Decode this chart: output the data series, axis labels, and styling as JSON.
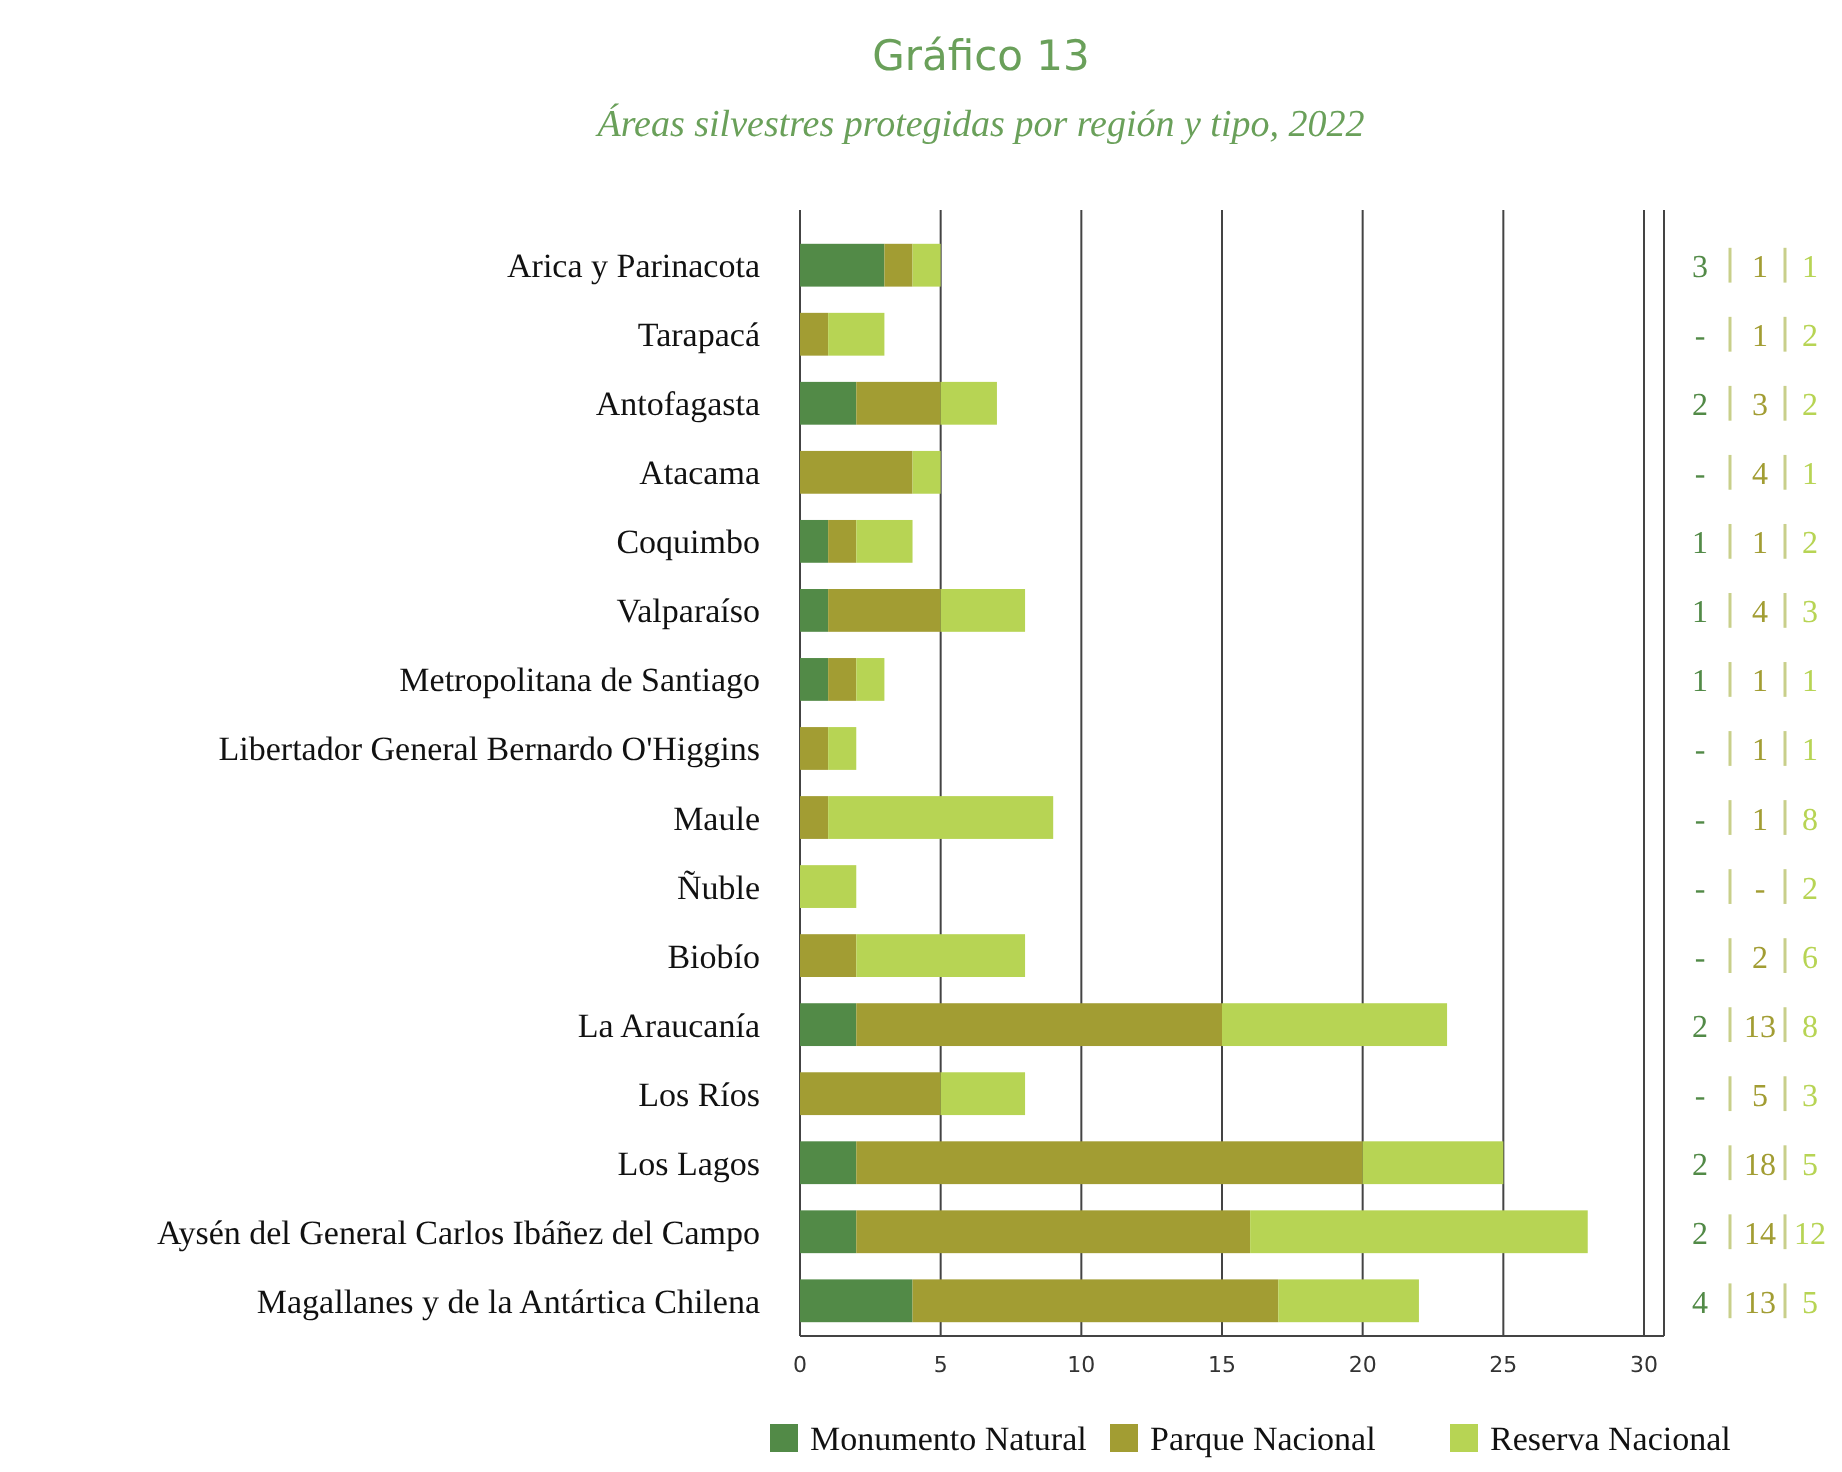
{
  "chart_data": {
    "type": "bar",
    "orientation": "horizontal",
    "stacked": true,
    "title": "Gráfico 13",
    "subtitle": "Áreas silvestres protegidas por región y tipo, 2022",
    "categories": [
      "Arica y Parinacota",
      "Tarapacá",
      "Antofagasta",
      "Atacama",
      "Coquimbo",
      "Valparaíso",
      "Metropolitana de Santiago",
      "Libertador General Bernardo O'Higgins",
      "Maule",
      "Ñuble",
      "Biobío",
      "La Araucanía",
      "Los Ríos",
      "Los Lagos",
      "Aysén del General Carlos Ibáñez del Campo",
      "Magallanes y de la Antártica Chilena"
    ],
    "series": [
      {
        "name": "Monumento Natural",
        "color": "#528a47",
        "values": [
          3,
          0,
          2,
          0,
          1,
          1,
          1,
          0,
          0,
          0,
          0,
          2,
          0,
          2,
          2,
          4
        ],
        "value_labels": [
          "3",
          "-",
          "2",
          "-",
          "1",
          "1",
          "1",
          "-",
          "-",
          "-",
          "-",
          "2",
          "-",
          "2",
          "2",
          "4"
        ]
      },
      {
        "name": "Parque Nacional",
        "color": "#a29d33",
        "values": [
          1,
          1,
          3,
          4,
          1,
          4,
          1,
          1,
          1,
          0,
          2,
          13,
          5,
          18,
          14,
          13
        ],
        "value_labels": [
          "1",
          "1",
          "3",
          "4",
          "1",
          "4",
          "1",
          "1",
          "1",
          "-",
          "2",
          "13",
          "5",
          "18",
          "14",
          "13"
        ]
      },
      {
        "name": "Reserva Nacional",
        "color": "#b7d454",
        "values": [
          1,
          2,
          2,
          1,
          2,
          3,
          1,
          1,
          8,
          2,
          6,
          8,
          3,
          5,
          12,
          5
        ],
        "value_labels": [
          "1",
          "2",
          "2",
          "1",
          "2",
          "3",
          "1",
          "1",
          "8",
          "2",
          "6",
          "8",
          "3",
          "5",
          "12",
          "5"
        ]
      }
    ],
    "xlim": [
      0,
      30
    ],
    "xticks": [
      0,
      5,
      10,
      15,
      20,
      25,
      30
    ],
    "grid": "x",
    "legend": "bottom"
  }
}
